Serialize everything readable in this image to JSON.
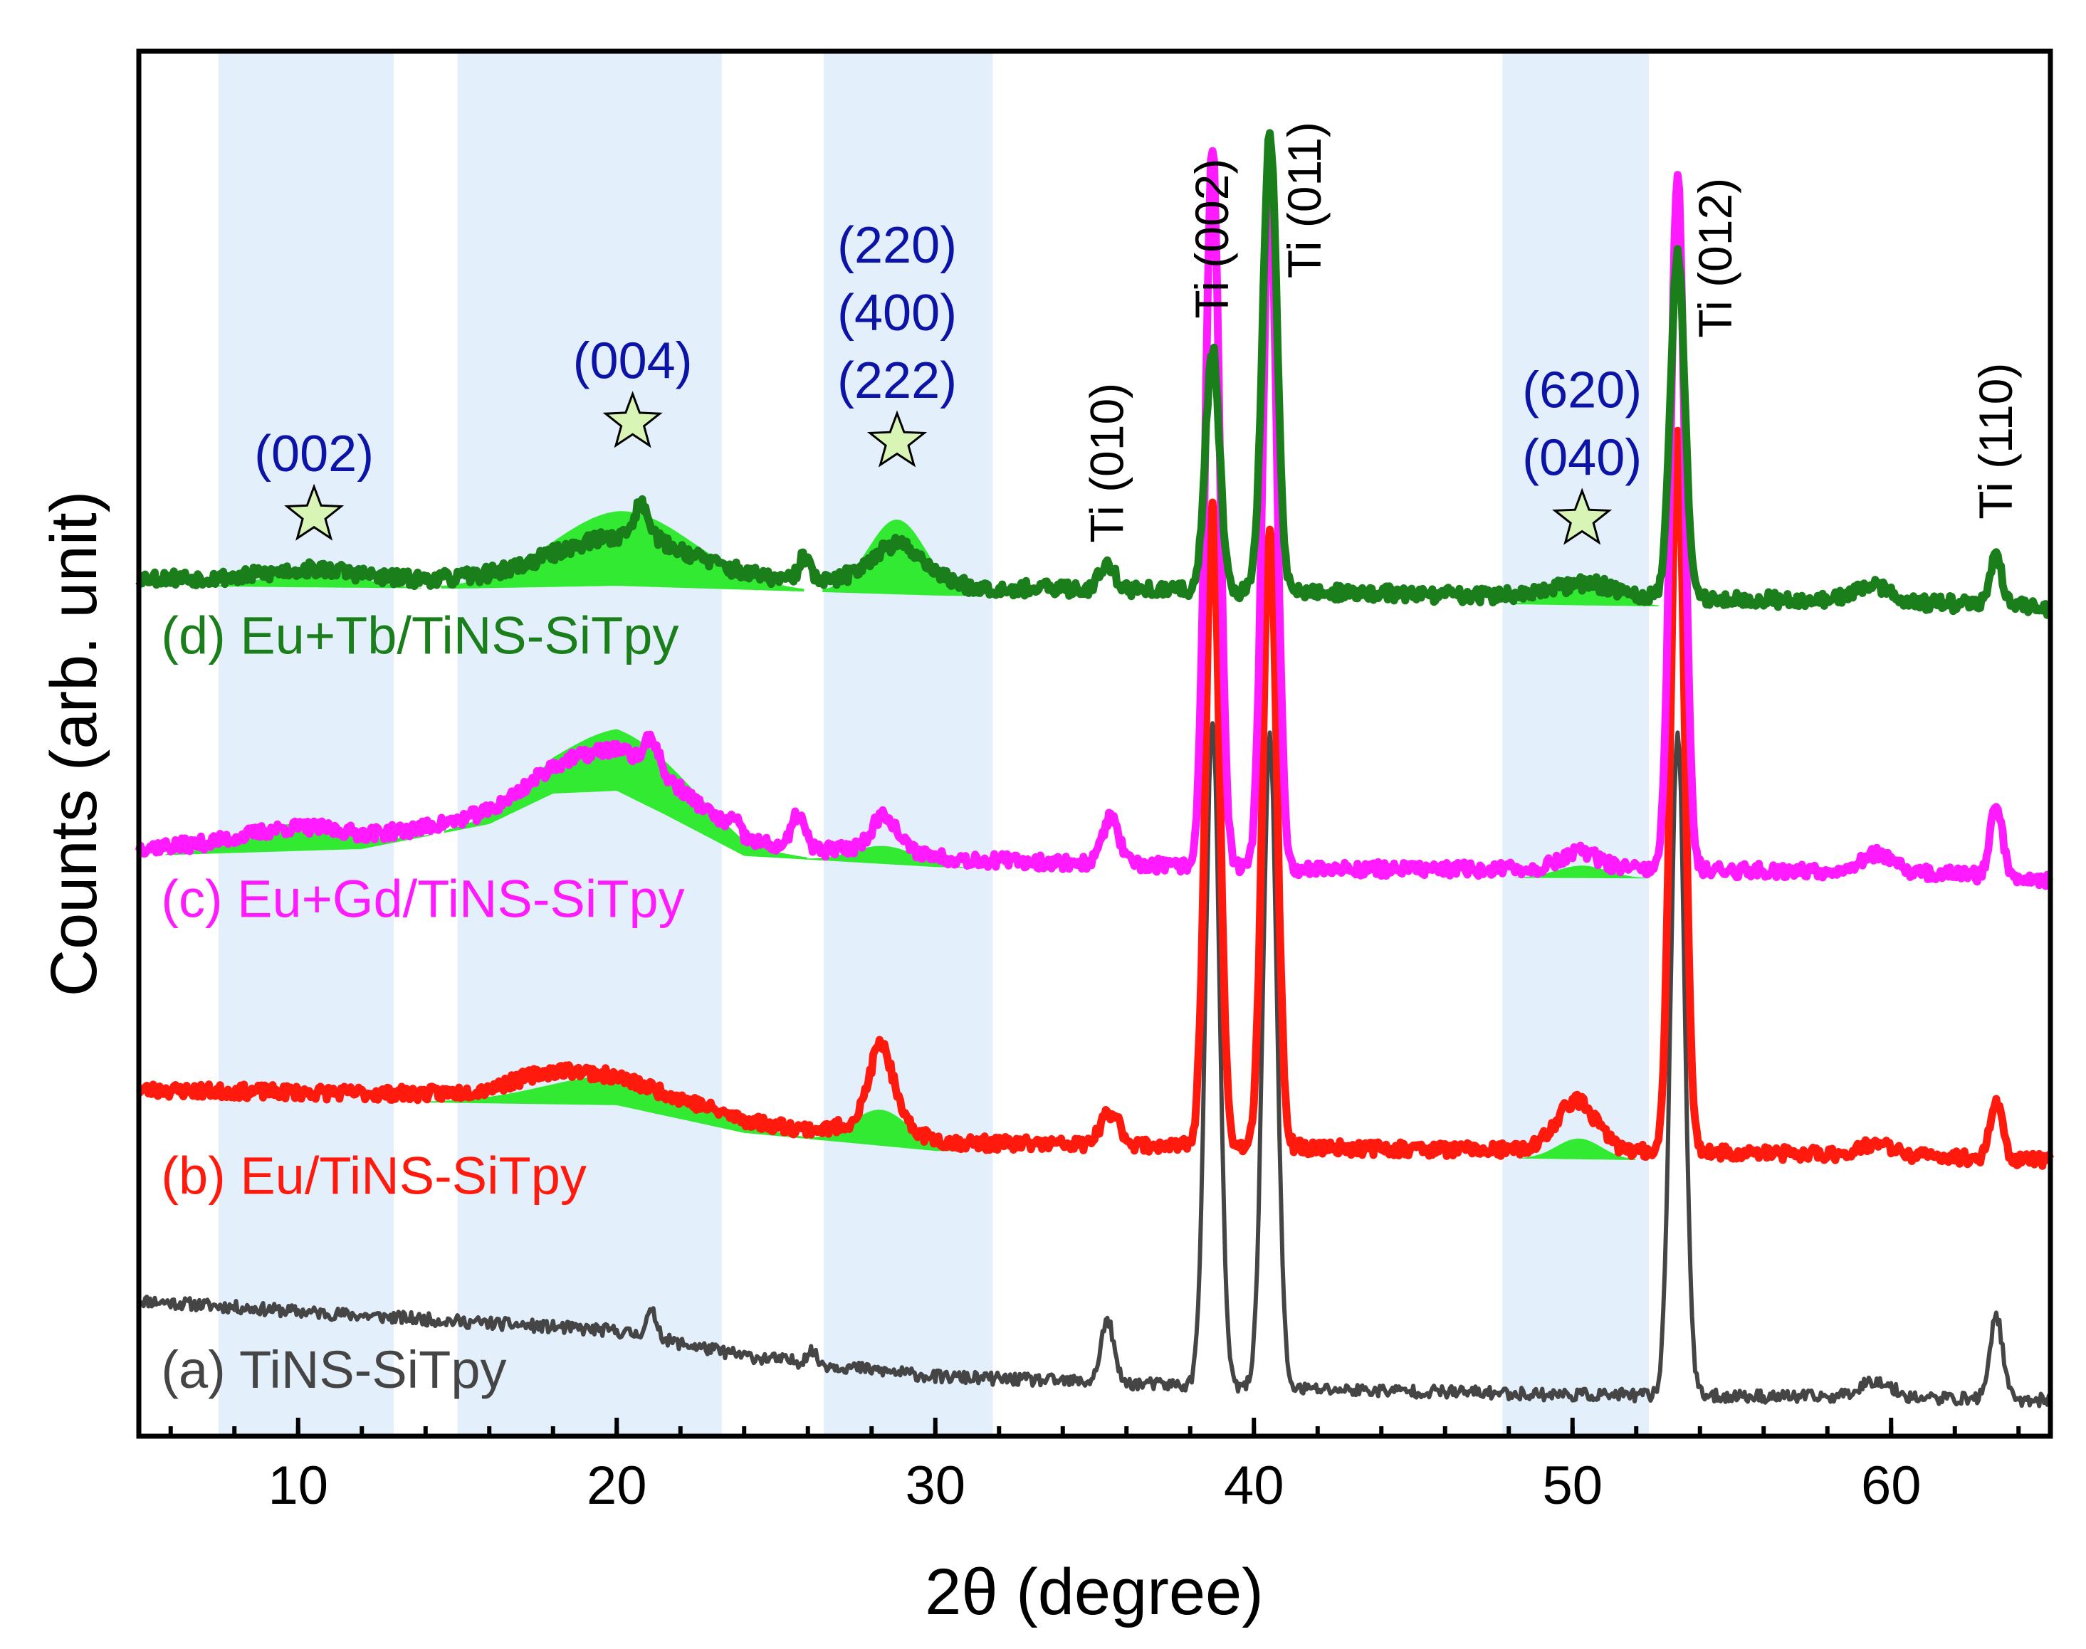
{
  "chart_data": {
    "type": "line",
    "title": "",
    "xlabel": "2θ (degree)",
    "ylabel": "Counts (arb. unit)",
    "xlim": [
      5,
      65
    ],
    "ylim": [
      0,
      100
    ],
    "x_ticks": [
      10,
      20,
      30,
      40,
      50,
      60
    ],
    "x_minor_step": 2,
    "grid": false,
    "stacking": "vertically offset traces",
    "highlight_bands": [
      [
        7.5,
        13
      ],
      [
        15,
        23.3
      ],
      [
        26.5,
        31.8
      ],
      [
        47.8,
        52.4
      ]
    ],
    "star_color": "#d9f5b5",
    "annotation_color": "#0c14a8",
    "ti_label_color": "#000000",
    "series": [
      {
        "name": "(a) TiNS-SiTpy",
        "color": "#454545",
        "fill_color": "",
        "seed": 11,
        "noise": 0.45,
        "label_anchor": [
          5.7,
          3.5
        ],
        "baseline": [
          [
            5,
            9.8
          ],
          [
            10,
            9.0
          ],
          [
            20,
            7.6
          ],
          [
            24,
            5.8
          ],
          [
            30,
            4.3
          ],
          [
            40,
            3.5
          ],
          [
            50,
            3.0
          ],
          [
            60,
            2.8
          ],
          [
            65,
            2.6
          ]
        ],
        "peaks": [
          [
            21.1,
            1.8,
            0.18
          ],
          [
            26.1,
            0.9,
            0.15
          ],
          [
            35.4,
            4.5,
            0.2
          ],
          [
            38.7,
            48,
            0.22
          ],
          [
            40.5,
            47,
            0.22
          ],
          [
            53.3,
            48,
            0.22
          ],
          [
            59.5,
            1.2,
            0.5
          ],
          [
            63.3,
            6,
            0.2
          ]
        ],
        "amorphous": []
      },
      {
        "name": "(b) Eu/TiNS-SiTpy",
        "color": "#ff1a0d",
        "fill_color": "#33ea33",
        "seed": 23,
        "noise": 0.5,
        "label_anchor": [
          5.7,
          17.5
        ],
        "baseline": [
          [
            5,
            25.0
          ],
          [
            20,
            24.5
          ],
          [
            24,
            22.5
          ],
          [
            30,
            21.2
          ],
          [
            40,
            20.9
          ],
          [
            50,
            20.6
          ],
          [
            60,
            20.3
          ],
          [
            65,
            19.9
          ]
        ],
        "peaks": [
          [
            18,
            1.0,
            1.2
          ],
          [
            28.3,
            5.3,
            0.35
          ],
          [
            35.5,
            2.3,
            0.3
          ],
          [
            38.7,
            46,
            0.22
          ],
          [
            40.5,
            45,
            0.22
          ],
          [
            50.1,
            2.8,
            0.6
          ],
          [
            53.3,
            52,
            0.22
          ],
          [
            59.5,
            0.8,
            0.5
          ],
          [
            63.3,
            4,
            0.2
          ]
        ],
        "amorphous": [
          [
            20.2,
            2.2,
            2.4
          ],
          [
            28.3,
            2.6,
            0.9
          ],
          [
            50.2,
            1.5,
            0.7
          ]
        ]
      },
      {
        "name": "(c) Eu+Gd/TiNS-SiTpy",
        "color": "#ff1aff",
        "fill_color": "#33ea33",
        "seed": 37,
        "noise": 0.5,
        "label_anchor": [
          5.7,
          37.5
        ],
        "baseline": [
          [
            5,
            42.5
          ],
          [
            12,
            43.0
          ],
          [
            16,
            44.8
          ],
          [
            18,
            47.0
          ],
          [
            20,
            47.2
          ],
          [
            21.5,
            45.5
          ],
          [
            24,
            42.5
          ],
          [
            30,
            41.7
          ],
          [
            40,
            41.0
          ],
          [
            50,
            40.9
          ],
          [
            60,
            40.8
          ],
          [
            65,
            40.2
          ]
        ],
        "peaks": [
          [
            21.1,
            2.2,
            0.2
          ],
          [
            23.7,
            0.9,
            0.18
          ],
          [
            25.7,
            2.5,
            0.2
          ],
          [
            28.4,
            2.3,
            0.35
          ],
          [
            35.5,
            3.4,
            0.25
          ],
          [
            38.7,
            52,
            0.22
          ],
          [
            40.5,
            50,
            0.22
          ],
          [
            50.2,
            0.8,
            0.5
          ],
          [
            53.3,
            50,
            0.22
          ],
          [
            59.5,
            1.2,
            0.5
          ],
          [
            63.3,
            5,
            0.2
          ]
        ],
        "amorphous": [
          [
            10,
            2.0,
            1.6
          ],
          [
            20.3,
            4.5,
            2.2
          ],
          [
            28.4,
            1.3,
            1.0
          ],
          [
            50.3,
            0.9,
            0.8
          ]
        ]
      },
      {
        "name": "(d) Eu+Tb/TiNS-SiTpy",
        "color": "#1a7f1a",
        "fill_color": "#33ea33",
        "seed": 53,
        "noise": 0.55,
        "label_anchor": [
          5.7,
          56.5
        ],
        "baseline": [
          [
            5,
            62.0
          ],
          [
            15,
            61.8
          ],
          [
            20,
            62.0
          ],
          [
            30,
            61.3
          ],
          [
            40,
            61.0
          ],
          [
            50,
            60.6
          ],
          [
            60,
            60.3
          ],
          [
            65,
            59.8
          ]
        ],
        "peaks": [
          [
            20.8,
            2.5,
            0.25
          ],
          [
            25.9,
            1.8,
            0.18
          ],
          [
            35.4,
            1.8,
            0.25
          ],
          [
            38.7,
            17.5,
            0.22
          ],
          [
            40.5,
            33,
            0.22
          ],
          [
            53.3,
            25,
            0.22
          ],
          [
            59.4,
            1.2,
            0.5
          ],
          [
            63.3,
            3.4,
            0.2
          ]
        ],
        "amorphous": [
          [
            10.5,
            1.3,
            1.3
          ],
          [
            20.2,
            5.4,
            2.2
          ],
          [
            28.8,
            5.4,
            0.9
          ],
          [
            50.4,
            1.8,
            0.9
          ]
        ]
      }
    ],
    "reflections": [
      {
        "label": "(002)",
        "x": 10.5,
        "y": 66.5
      },
      {
        "label": "(004)",
        "x": 20.5,
        "y": 73.2
      },
      {
        "lines": [
          "(220)",
          "(400)",
          "(222)"
        ],
        "x": 28.8,
        "y": 71.8
      },
      {
        "lines": [
          "(620)",
          "(040)"
        ],
        "x": 50.3,
        "y": 66.2
      }
    ],
    "ti_labels": [
      {
        "label": "Ti (010)",
        "x": 35.4,
        "y": 64.5
      },
      {
        "label": "Ti (002)",
        "x": 38.7,
        "y": 80.7
      },
      {
        "label": "Ti (011)",
        "x": 41.6,
        "y": 83.6
      },
      {
        "label": "Ti (012)",
        "x": 54.5,
        "y": 79.3
      },
      {
        "label": "Ti (110)",
        "x": 63.3,
        "y": 66.2
      }
    ]
  }
}
